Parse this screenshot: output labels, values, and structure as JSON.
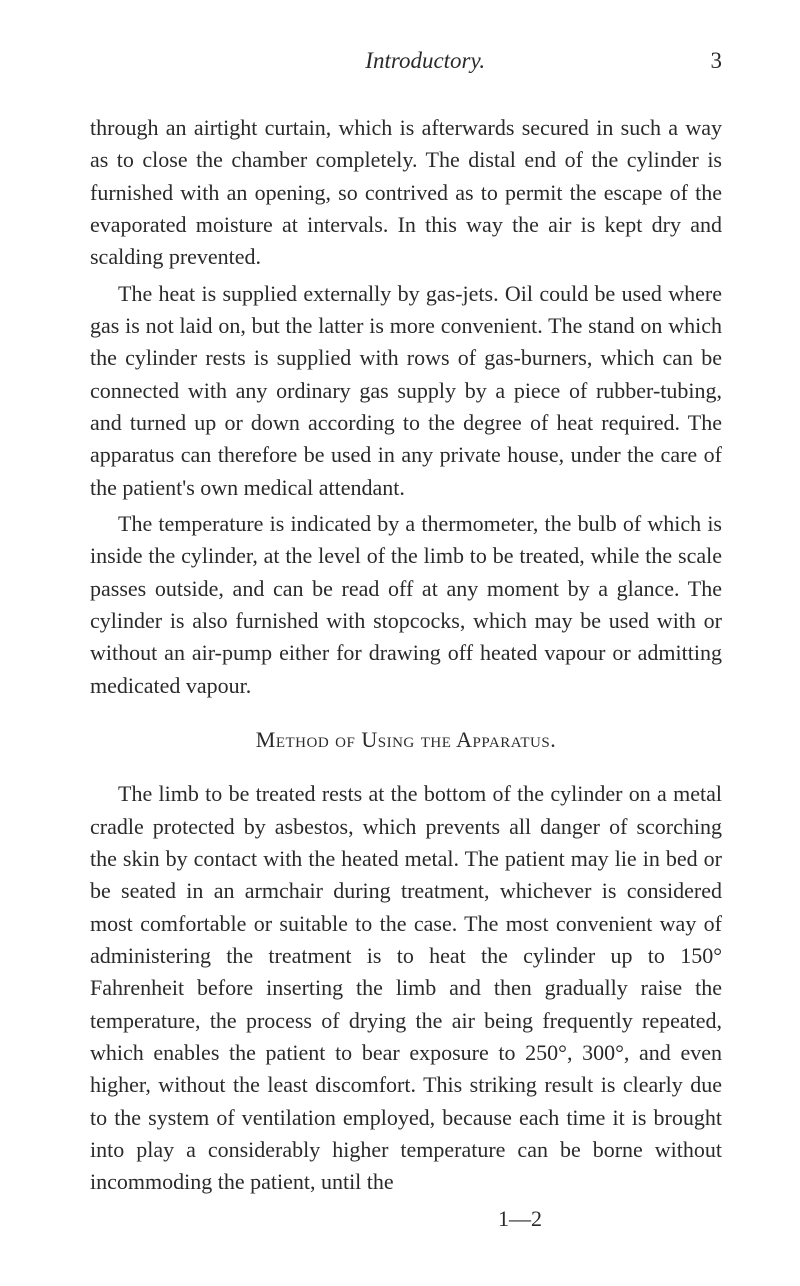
{
  "header": {
    "title": "Introductory.",
    "page_number": "3"
  },
  "paragraphs": {
    "p1": "through an airtight curtain, which is afterwards secured in such a way as to close the chamber completely. The distal end of the cylinder is furnished with an opening, so contrived as to permit the escape of the evaporated moisture at intervals. In this way the air is kept dry and scalding prevented.",
    "p2": "The heat is supplied externally by gas-jets. Oil could be used where gas is not laid on, but the latter is more convenient. The stand on which the cylinder rests is supplied with rows of gas-burners, which can be connected with any ordinary gas supply by a piece of rubber-tubing, and turned up or down according to the degree of heat required. The apparatus can therefore be used in any private house, under the care of the patient's own medical attendant.",
    "p3": "The temperature is indicated by a thermometer, the bulb of which is inside the cylinder, at the level of the limb to be treated, while the scale passes outside, and can be read off at any moment by a glance. The cylinder is also furnished with stopcocks, which may be used with or without an air-pump either for drawing off heated vapour or admitting medicated vapour.",
    "heading": "Method of Using the Apparatus.",
    "p4": "The limb to be treated rests at the bottom of the cylinder on a metal cradle protected by asbestos, which prevents all danger of scorching the skin by contact with the heated metal. The patient may lie in bed or be seated in an armchair during treatment, whichever is considered most comfortable or suitable to the case. The most convenient way of administering the treatment is to heat the cylinder up to 150° Fahrenheit before inserting the limb and then gradually raise the temperature, the process of drying the air being frequently repeated, which enables the patient to bear exposure to 250°, 300°, and even higher, without the least discomfort. This striking result is clearly due to the system of ventilation employed, because each time it is brought into play a considerably higher temperature can be borne without incommoding the patient, until the"
  },
  "footer_mark": "1—2",
  "colors": {
    "background": "#ffffff",
    "text": "#2a2a2a"
  },
  "typography": {
    "body_fontsize": 22,
    "header_fontsize": 23,
    "line_height": 1.47,
    "font_family": "Georgia, Times New Roman, serif"
  }
}
